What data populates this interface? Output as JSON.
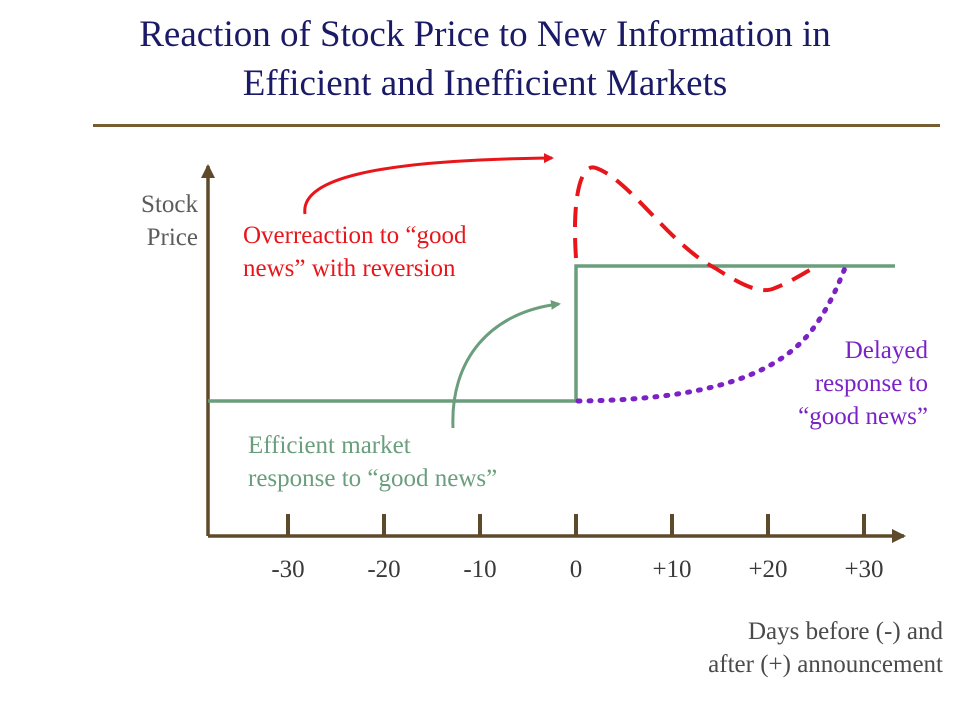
{
  "title": {
    "line1": "Reaction of Stock Price to New Information in",
    "line2": "Efficient and Inefficient Markets"
  },
  "axes": {
    "y_label_line1": "Stock",
    "y_label_line2": "Price",
    "x_label_line1": "Days before (-) and",
    "x_label_line2": "after (+) announcement",
    "ticks": [
      "-30",
      "-20",
      "-10",
      "0",
      "+10",
      "+20",
      "+30"
    ]
  },
  "annotations": {
    "overreaction_line1": "Overreaction to “good",
    "overreaction_line2": "news” with reversion",
    "efficient_line1": "Efficient market",
    "efficient_line2": "response to “good news”",
    "delayed_line1": "Delayed",
    "delayed_line2": "response to",
    "delayed_line3": "“good news”"
  },
  "colors": {
    "title": "#1a1a66",
    "axis": "#5e4a2a",
    "efficient": "#6a9e7c",
    "overreaction": "#e8161a",
    "delayed": "#7b22c7"
  }
}
